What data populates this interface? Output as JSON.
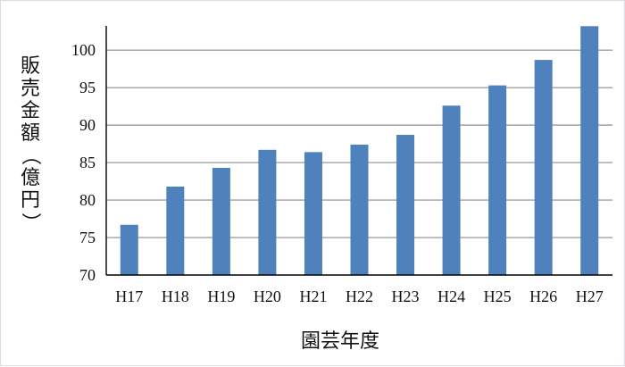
{
  "chart_data": {
    "type": "bar",
    "categories": [
      "H17",
      "H18",
      "H19",
      "H20",
      "H21",
      "H22",
      "H23",
      "H24",
      "H25",
      "H26",
      "H27"
    ],
    "values": [
      76.7,
      81.8,
      84.3,
      86.7,
      86.4,
      87.4,
      88.7,
      92.6,
      95.3,
      98.7,
      103.2
    ],
    "title": "",
    "xlabel": "園芸年度",
    "ylabel": "販売金額（億円）",
    "ylim": [
      70,
      103
    ],
    "yticks": [
      70,
      75,
      80,
      85,
      90,
      95,
      100
    ],
    "grid": true,
    "bar_color": "#4f81bd",
    "grid_color": "#a0a0a0"
  }
}
